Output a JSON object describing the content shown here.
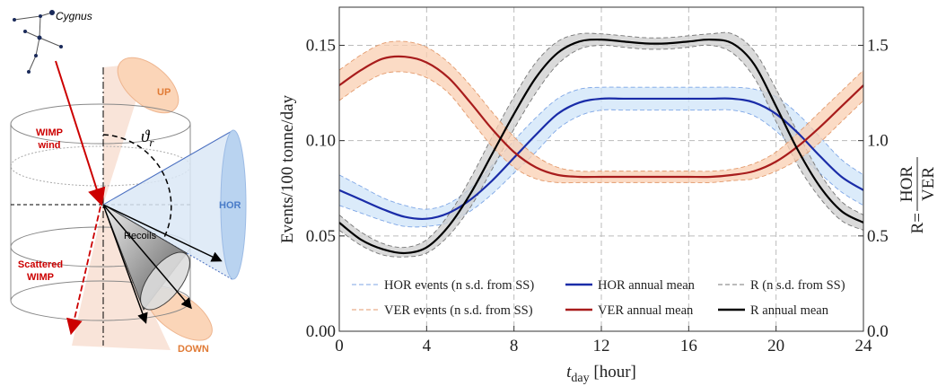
{
  "diagram": {
    "constellation": "Cygnus",
    "wimp_wind": [
      "WIMP",
      "wind"
    ],
    "up": "UP",
    "hor": "HOR",
    "angle": "ϑ",
    "angle_sub": "r",
    "recoils": "Recoils",
    "scattered": [
      "Scattered",
      "WIMP"
    ],
    "down": "DOWN"
  },
  "chart_data": {
    "type": "line",
    "ylabel": "Events/100 tonne/day",
    "y2label": {
      "lhs": "R=",
      "num": "HOR",
      "den": "VER"
    },
    "xlabel": {
      "main": "t",
      "sub": "day",
      "rest": " [hour]"
    },
    "x": [
      0,
      1,
      2,
      3,
      4,
      5,
      6,
      7,
      8,
      9,
      10,
      11,
      12,
      13,
      14,
      15,
      16,
      17,
      18,
      19,
      20,
      21,
      22,
      23,
      24
    ],
    "xlim": [
      0,
      24
    ],
    "xticks": [
      0,
      4,
      8,
      12,
      16,
      20,
      24
    ],
    "ylim": [
      0,
      0.17
    ],
    "yticks": [
      {
        "value": 0,
        "label": "0.00"
      },
      0.05,
      {
        "value": 0.1,
        "label": "0.10"
      },
      0.15
    ],
    "y2lim": [
      0,
      1.7
    ],
    "y2ticks": [
      {
        "value": 0,
        "label": "0.0"
      },
      0.5,
      {
        "value": 1,
        "label": "1.0"
      },
      1.5
    ],
    "grid": true,
    "legend": "lower center",
    "series": [
      {
        "name": "HOR events (n s.d. from SS)",
        "kind": "band",
        "color": "#7ea6e6",
        "fill": "#cfe4f8",
        "upper": [
          0.082,
          0.076,
          0.07,
          0.066,
          0.064,
          0.067,
          0.075,
          0.087,
          0.1,
          0.112,
          0.122,
          0.127,
          0.128,
          0.128,
          0.128,
          0.128,
          0.128,
          0.128,
          0.128,
          0.127,
          0.123,
          0.114,
          0.102,
          0.09,
          0.082
        ],
        "lower": [
          0.066,
          0.062,
          0.058,
          0.055,
          0.055,
          0.057,
          0.063,
          0.072,
          0.083,
          0.094,
          0.106,
          0.113,
          0.116,
          0.116,
          0.116,
          0.116,
          0.116,
          0.116,
          0.116,
          0.113,
          0.105,
          0.094,
          0.083,
          0.073,
          0.066
        ]
      },
      {
        "name": "HOR annual mean",
        "kind": "line",
        "color": "#1a2ca8",
        "values": [
          0.074,
          0.069,
          0.064,
          0.06,
          0.059,
          0.062,
          0.069,
          0.079,
          0.091,
          0.103,
          0.114,
          0.12,
          0.122,
          0.122,
          0.122,
          0.122,
          0.122,
          0.122,
          0.122,
          0.12,
          0.114,
          0.104,
          0.092,
          0.081,
          0.074
        ]
      },
      {
        "name": "R (n s.d. from SS)",
        "kind": "band",
        "axis": "y2",
        "color": "#777777",
        "fill": "#cdcdcd",
        "upper": [
          0.61,
          0.52,
          0.46,
          0.44,
          0.48,
          0.61,
          0.8,
          1.02,
          1.23,
          1.41,
          1.52,
          1.56,
          1.56,
          1.55,
          1.54,
          1.54,
          1.55,
          1.56,
          1.56,
          1.47,
          1.27,
          1.04,
          0.83,
          0.68,
          0.61
        ],
        "lower": [
          0.53,
          0.45,
          0.4,
          0.39,
          0.41,
          0.5,
          0.65,
          0.85,
          1.06,
          1.25,
          1.4,
          1.48,
          1.5,
          1.49,
          1.48,
          1.48,
          1.49,
          1.5,
          1.46,
          1.33,
          1.1,
          0.87,
          0.7,
          0.58,
          0.53
        ]
      },
      {
        "name": "VER events (n s.d. from SS)",
        "kind": "band",
        "color": "#e39a6c",
        "fill": "#f9cfb2",
        "upper": [
          0.137,
          0.145,
          0.151,
          0.152,
          0.149,
          0.141,
          0.129,
          0.115,
          0.102,
          0.092,
          0.086,
          0.084,
          0.084,
          0.084,
          0.084,
          0.084,
          0.084,
          0.084,
          0.085,
          0.088,
          0.094,
          0.104,
          0.115,
          0.126,
          0.137
        ],
        "lower": [
          0.121,
          0.129,
          0.135,
          0.136,
          0.133,
          0.125,
          0.111,
          0.097,
          0.086,
          0.08,
          0.078,
          0.078,
          0.078,
          0.078,
          0.078,
          0.078,
          0.078,
          0.078,
          0.079,
          0.08,
          0.084,
          0.09,
          0.099,
          0.11,
          0.121
        ]
      },
      {
        "name": "VER annual mean",
        "kind": "line",
        "color": "#a81c1c",
        "values": [
          0.129,
          0.137,
          0.143,
          0.144,
          0.141,
          0.133,
          0.12,
          0.106,
          0.094,
          0.086,
          0.082,
          0.081,
          0.081,
          0.081,
          0.081,
          0.081,
          0.081,
          0.081,
          0.082,
          0.084,
          0.089,
          0.097,
          0.107,
          0.118,
          0.129
        ]
      },
      {
        "name": "R annual mean",
        "kind": "line",
        "axis": "y2",
        "color": "#000000",
        "values": [
          0.57,
          0.48,
          0.43,
          0.41,
          0.44,
          0.55,
          0.72,
          0.93,
          1.14,
          1.33,
          1.46,
          1.52,
          1.53,
          1.52,
          1.51,
          1.51,
          1.52,
          1.53,
          1.51,
          1.4,
          1.18,
          0.95,
          0.76,
          0.63,
          0.57
        ]
      }
    ]
  }
}
